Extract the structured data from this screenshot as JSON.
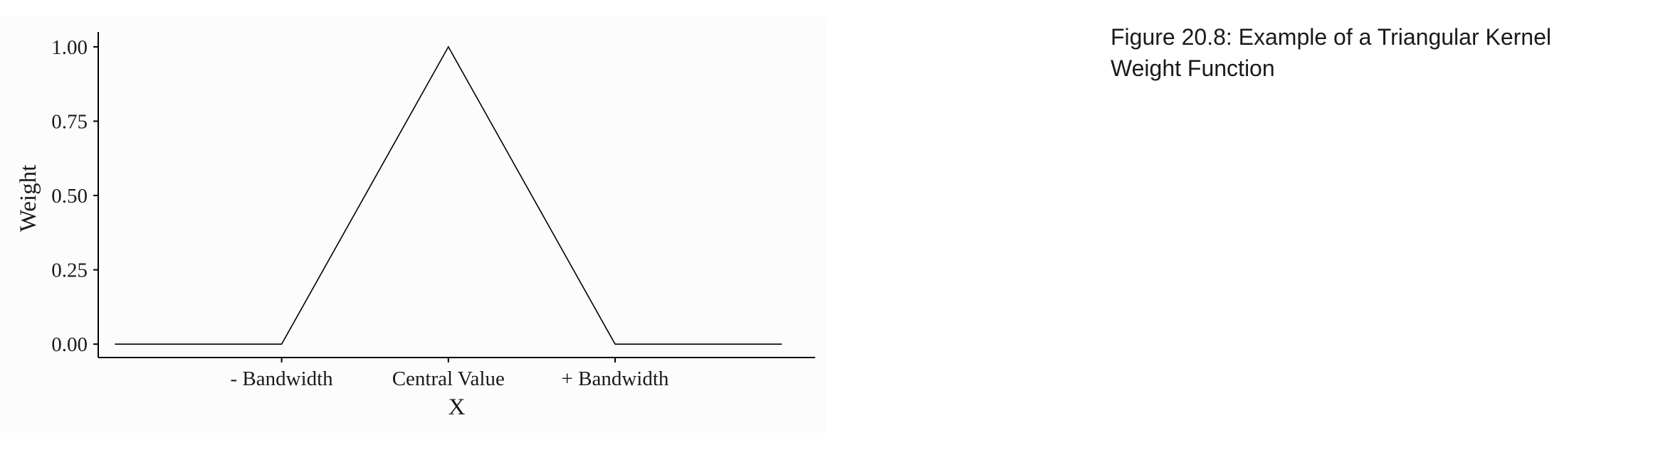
{
  "caption": "Figure 20.8: Example of a Triangular Kernel Weight Function",
  "chart_data": {
    "type": "line",
    "title": "",
    "xlabel": "X",
    "ylabel": "Weight",
    "x": [
      -2,
      -1,
      0,
      1,
      2
    ],
    "xlim": [
      -2.1,
      2.2
    ],
    "x_tick_values": [
      -1,
      0,
      1
    ],
    "x_tick_labels": [
      "- Bandwidth",
      "Central Value",
      "+ Bandwidth"
    ],
    "y_tick_values": [
      0,
      0.25,
      0.5,
      0.75,
      1
    ],
    "y_tick_labels": [
      "0.00",
      "0.25",
      "0.50",
      "0.75",
      "1.00"
    ],
    "ylim": [
      -0.045,
      1.05
    ],
    "grid": false,
    "line_color": "#000000",
    "series": [
      {
        "values": [
          0,
          0,
          1,
          0,
          0
        ]
      }
    ]
  }
}
